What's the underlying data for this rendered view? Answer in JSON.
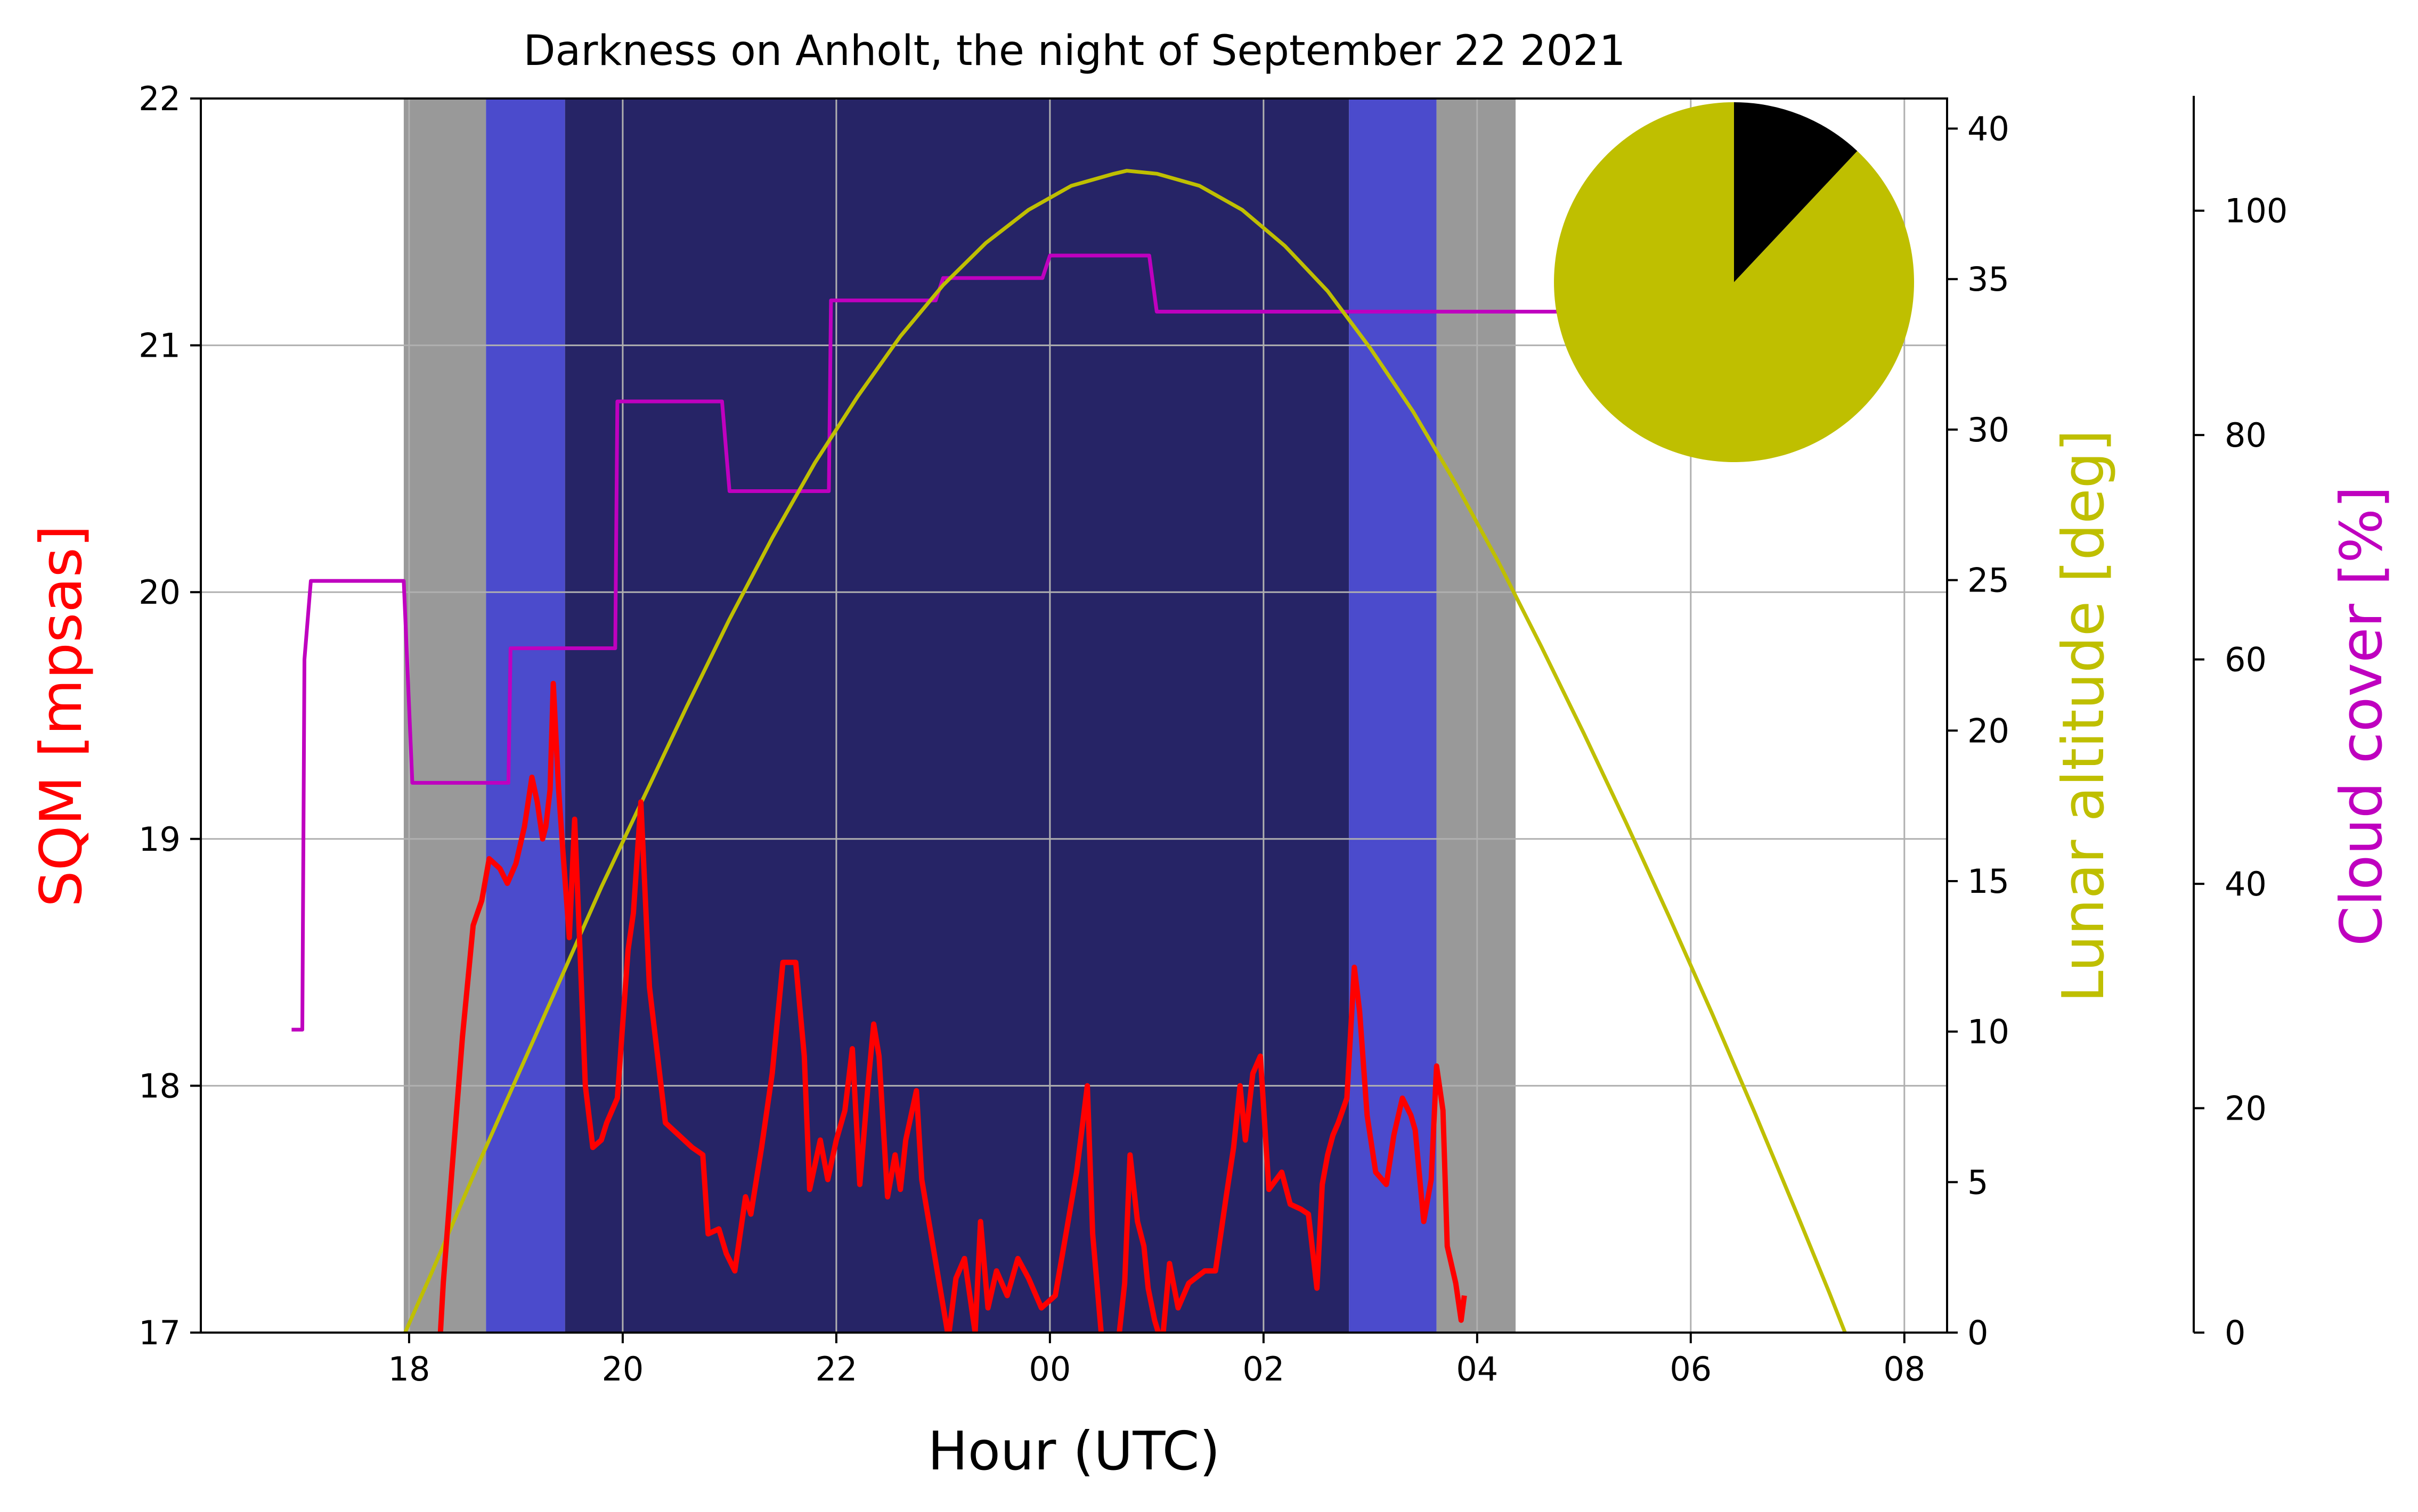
{
  "chart_data": {
    "type": "line",
    "title": "Darkness on Anholt, the night of September 22 2021",
    "xlabel": "Hour (UTC)",
    "xlim": [
      16.05,
      32.4
    ],
    "x_ticks": [
      18,
      20,
      22,
      24,
      26,
      28,
      30,
      32
    ],
    "x_tick_labels": [
      "18",
      "20",
      "22",
      "00",
      "02",
      "04",
      "06",
      "08"
    ],
    "grid": true,
    "axes": {
      "sqm": {
        "label": "SQM [mpsas]",
        "color": "#ff0000",
        "ylim": [
          17,
          22
        ],
        "ticks": [
          17,
          18,
          19,
          20,
          21,
          22
        ],
        "tick_labels": [
          "17",
          "18",
          "19",
          "20",
          "21",
          "22"
        ]
      },
      "lunar": {
        "label": "Lunar altitude [deg]",
        "color": "#bfbf00",
        "ylim": [
          0,
          41
        ],
        "ticks": [
          0,
          5,
          10,
          15,
          20,
          25,
          30,
          35,
          40
        ],
        "tick_labels": [
          "0",
          "5",
          "10",
          "15",
          "20",
          "25",
          "30",
          "35",
          "40"
        ]
      },
      "cloud": {
        "label": "Cloud cover [%]",
        "color": "#bf00bf",
        "ylim": [
          0,
          110
        ],
        "ticks": [
          0,
          20,
          40,
          60,
          80,
          100
        ],
        "tick_labels": [
          "0",
          "20",
          "40",
          "60",
          "80",
          "100"
        ]
      }
    },
    "twilight_bands": [
      {
        "x0": 17.95,
        "x1": 18.72,
        "color": "#999999"
      },
      {
        "x0": 18.72,
        "x1": 19.46,
        "color": "#4b4bcc"
      },
      {
        "x0": 19.46,
        "x1": 26.8,
        "color": "#262466"
      },
      {
        "x0": 26.8,
        "x1": 27.62,
        "color": "#4b4bcc"
      },
      {
        "x0": 27.62,
        "x1": 28.36,
        "color": "#999999"
      }
    ],
    "series": [
      {
        "axis": "cloud",
        "color": "#bf00bf",
        "x": [
          16.9,
          17.0,
          17.02,
          17.08,
          17.95,
          18.03,
          18.93,
          18.95,
          19.93,
          19.95,
          20.93,
          21.0,
          21.93,
          21.95,
          22.93,
          23.0,
          23.93,
          24.0,
          24.93,
          25.0,
          28.95
        ],
        "y": [
          27,
          27,
          60,
          67,
          67,
          49,
          49,
          61,
          61,
          83,
          83,
          75,
          75,
          92,
          92,
          94,
          94,
          96,
          96,
          91,
          91
        ]
      },
      {
        "axis": "lunar",
        "color": "#bfbf00",
        "x": [
          17.9,
          18.2,
          18.6,
          19.0,
          19.4,
          19.8,
          20.2,
          20.6,
          21.0,
          21.4,
          21.8,
          22.2,
          22.6,
          23.0,
          23.4,
          23.8,
          24.2,
          24.6,
          24.72,
          25.0,
          25.4,
          25.8,
          26.2,
          26.6,
          27.0,
          27.4,
          27.8,
          28.2,
          28.6,
          29.0,
          29.4,
          29.8,
          30.2,
          30.6,
          31.0,
          31.3,
          31.5
        ],
        "y": [
          -0.5,
          1.9,
          5.2,
          8.4,
          11.6,
          14.8,
          17.8,
          20.8,
          23.7,
          26.4,
          28.9,
          31.1,
          33.1,
          34.8,
          36.2,
          37.3,
          38.1,
          38.5,
          38.6,
          38.5,
          38.1,
          37.3,
          36.1,
          34.6,
          32.7,
          30.6,
          28.2,
          25.6,
          22.8,
          19.9,
          16.9,
          13.8,
          10.6,
          7.3,
          3.9,
          1.3,
          -0.5
        ]
      },
      {
        "axis": "sqm",
        "color": "#ff0000",
        "x": [
          18.28,
          18.32,
          18.4,
          18.5,
          18.6,
          18.68,
          18.75,
          18.85,
          18.92,
          19.0,
          19.08,
          19.15,
          19.2,
          19.25,
          19.28,
          19.32,
          19.35,
          19.4,
          19.44,
          19.5,
          19.55,
          19.6,
          19.65,
          19.72,
          19.8,
          19.85,
          19.95,
          20.0,
          20.05,
          20.1,
          20.17,
          20.25,
          20.4,
          20.65,
          20.75,
          20.8,
          20.9,
          20.97,
          21.05,
          21.15,
          21.2,
          21.3,
          21.4,
          21.5,
          21.62,
          21.7,
          21.75,
          21.85,
          21.92,
          22.0,
          22.08,
          22.15,
          22.22,
          22.3,
          22.35,
          22.4,
          22.48,
          22.55,
          22.6,
          22.65,
          22.75,
          22.8,
          23.05,
          23.12,
          23.2,
          23.3,
          23.35,
          23.42,
          23.5,
          23.6,
          23.7,
          23.8,
          23.92,
          24.05,
          24.15,
          24.25,
          24.35,
          24.4,
          24.48,
          24.58,
          24.65,
          24.7,
          24.75,
          24.82,
          24.88,
          24.92,
          24.98,
          25.05,
          25.12,
          25.2,
          25.3,
          25.45,
          25.55,
          25.65,
          25.72,
          25.78,
          25.83,
          25.9,
          25.97,
          26.05,
          26.17,
          26.25,
          26.35,
          26.42,
          26.5,
          26.55,
          26.6,
          26.65,
          26.7,
          26.78,
          26.85,
          26.9,
          26.97,
          27.05,
          27.15,
          27.22,
          27.3,
          27.38,
          27.42,
          27.5,
          27.57,
          27.62,
          27.68,
          27.72,
          27.8,
          27.85,
          27.88
        ],
        "y": [
          16.9,
          17.2,
          17.65,
          18.2,
          18.65,
          18.75,
          18.92,
          18.88,
          18.82,
          18.9,
          19.05,
          19.25,
          19.15,
          19.0,
          19.05,
          19.2,
          19.63,
          19.2,
          18.95,
          18.6,
          19.08,
          18.55,
          18.0,
          17.75,
          17.78,
          17.85,
          17.95,
          18.25,
          18.55,
          18.7,
          19.15,
          18.4,
          17.85,
          17.75,
          17.72,
          17.4,
          17.42,
          17.32,
          17.25,
          17.55,
          17.48,
          17.75,
          18.05,
          18.5,
          18.5,
          18.12,
          17.58,
          17.78,
          17.62,
          17.78,
          17.9,
          18.15,
          17.6,
          18.02,
          18.25,
          18.12,
          17.55,
          17.72,
          17.58,
          17.78,
          17.98,
          17.62,
          16.98,
          17.22,
          17.3,
          17.0,
          17.45,
          17.1,
          17.25,
          17.15,
          17.3,
          17.22,
          17.1,
          17.15,
          17.4,
          17.65,
          18.0,
          17.4,
          17.0,
          16.95,
          17.0,
          17.2,
          17.72,
          17.45,
          17.35,
          17.18,
          17.05,
          16.95,
          17.28,
          17.1,
          17.2,
          17.25,
          17.25,
          17.55,
          17.75,
          18.0,
          17.78,
          18.05,
          18.12,
          17.58,
          17.65,
          17.52,
          17.5,
          17.48,
          17.18,
          17.6,
          17.72,
          17.8,
          17.85,
          17.95,
          18.48,
          18.3,
          17.88,
          17.65,
          17.6,
          17.8,
          17.95,
          17.88,
          17.82,
          17.45,
          17.62,
          18.08,
          17.9,
          17.35,
          17.2,
          17.05,
          17.15
        ]
      }
    ],
    "pie": {
      "values": [
        88,
        12
      ],
      "colors": [
        "#bfbf00",
        "#000000"
      ]
    }
  }
}
